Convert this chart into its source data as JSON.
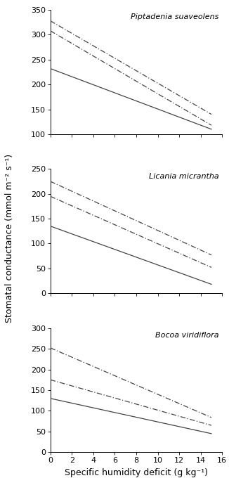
{
  "panels": [
    {
      "species": "Piptadenia suaveolens",
      "ylim": [
        100,
        350
      ],
      "yticks": [
        100,
        150,
        200,
        250,
        300,
        350
      ],
      "lines": [
        {
          "x0": 0,
          "y0": 232,
          "x1": 15,
          "y1": 110,
          "style": "solid"
        },
        {
          "x0": 0,
          "y0": 308,
          "x1": 15,
          "y1": 118,
          "style": "dashdot"
        },
        {
          "x0": 0,
          "y0": 328,
          "x1": 15,
          "y1": 140,
          "style": "dashdot"
        }
      ]
    },
    {
      "species": "Licania micrantha",
      "ylim": [
        0,
        250
      ],
      "yticks": [
        0,
        50,
        100,
        150,
        200,
        250
      ],
      "lines": [
        {
          "x0": 0,
          "y0": 135,
          "x1": 15,
          "y1": 18,
          "style": "solid"
        },
        {
          "x0": 0,
          "y0": 195,
          "x1": 15,
          "y1": 52,
          "style": "dashdot"
        },
        {
          "x0": 0,
          "y0": 225,
          "x1": 15,
          "y1": 77,
          "style": "dashdot"
        }
      ]
    },
    {
      "species": "Bocoa viridiflora",
      "ylim": [
        0,
        300
      ],
      "yticks": [
        0,
        50,
        100,
        150,
        200,
        250,
        300
      ],
      "lines": [
        {
          "x0": 0,
          "y0": 130,
          "x1": 15,
          "y1": 45,
          "style": "solid"
        },
        {
          "x0": 0,
          "y0": 175,
          "x1": 15,
          "y1": 65,
          "style": "dashdot"
        },
        {
          "x0": 0,
          "y0": 252,
          "x1": 15,
          "y1": 84,
          "style": "dashdot"
        }
      ]
    }
  ],
  "xlim": [
    0,
    16
  ],
  "xticks": [
    0,
    2,
    4,
    6,
    8,
    10,
    12,
    14,
    16
  ],
  "xlabel": "Specific humidity deficit (g kg⁻¹)",
  "ylabel": "Stomatal conductance (mmol m⁻² s⁻¹)",
  "line_color": "#444444",
  "species_fontsize": 8,
  "axis_label_fontsize": 9,
  "tick_fontsize": 8
}
